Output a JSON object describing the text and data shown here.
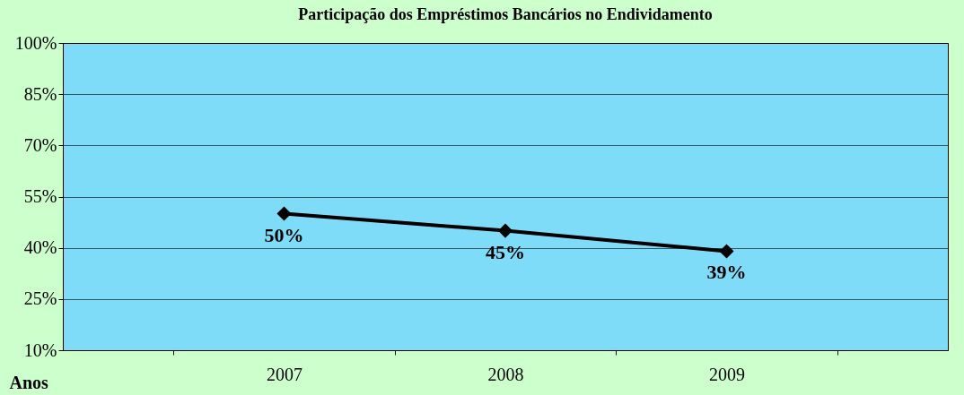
{
  "chart_data": {
    "type": "line",
    "title": "Participação dos Empréstimos Bancários no Endividamento",
    "xlabel": "Anos",
    "categories": [
      "2007",
      "2008",
      "2009"
    ],
    "series": [
      {
        "color": "#000000",
        "values": [
          50,
          45,
          39
        ],
        "value_labels": [
          "50%",
          "45%",
          "39%"
        ]
      }
    ],
    "ylim": [
      10,
      100
    ],
    "yticks": [
      {
        "value": 10,
        "label": "10%"
      },
      {
        "value": 25,
        "label": "25%"
      },
      {
        "value": 40,
        "label": "40%"
      },
      {
        "value": 55,
        "label": "55%"
      },
      {
        "value": 70,
        "label": "70%"
      },
      {
        "value": 85,
        "label": "85%"
      },
      {
        "value": 100,
        "label": "100%"
      }
    ],
    "grid": "y",
    "marker": "diamond",
    "line_style": "solid"
  }
}
